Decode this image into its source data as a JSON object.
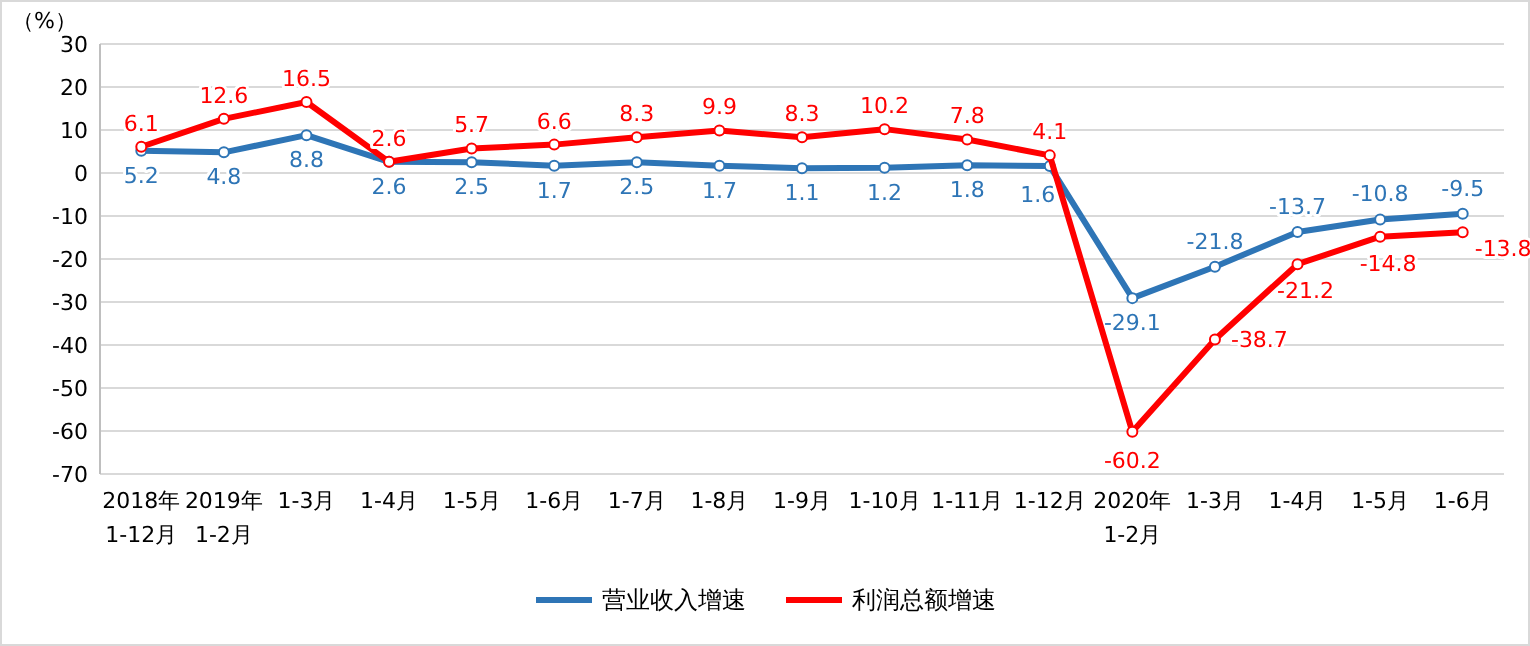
{
  "chart_data": {
    "type": "line",
    "ylabel": "（%）",
    "categories": [
      "2018年\n1-12月",
      "2019年\n1-2月",
      "1-3月",
      "1-4月",
      "1-5月",
      "1-6月",
      "1-7月",
      "1-8月",
      "1-9月",
      "1-10月",
      "1-11月",
      "1-12月",
      "2020年\n1-2月",
      "1-3月",
      "1-4月",
      "1-5月",
      "1-6月"
    ],
    "series": [
      {
        "name": "营业收入增速",
        "color": "#2e75b6",
        "values": [
          5.2,
          4.8,
          8.8,
          2.6,
          2.5,
          1.7,
          2.5,
          1.7,
          1.1,
          1.2,
          1.8,
          1.6,
          -29.1,
          -21.8,
          -13.7,
          -10.8,
          -9.5
        ]
      },
      {
        "name": "利润总额增速",
        "color": "#ff0000",
        "values": [
          6.1,
          12.6,
          16.5,
          2.6,
          5.7,
          6.6,
          8.3,
          9.9,
          8.3,
          10.2,
          7.8,
          4.1,
          -60.2,
          -38.7,
          -21.2,
          -14.8,
          -13.8
        ]
      }
    ],
    "ylim": [
      -70,
      30
    ],
    "yticks": [
      -70,
      -60,
      -50,
      -40,
      -30,
      -20,
      -10,
      0,
      10,
      20,
      30
    ],
    "grid": "y",
    "legend": "bottom",
    "marker": "circle",
    "line_style": "solid",
    "data_labels": true
  }
}
